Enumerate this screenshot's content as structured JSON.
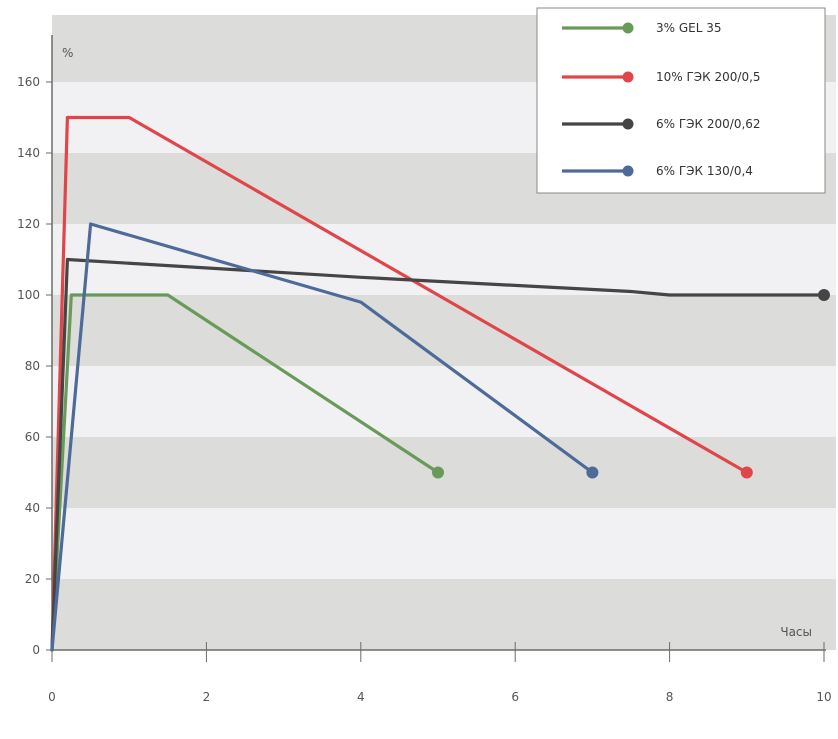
{
  "chart_data": {
    "type": "line",
    "ylabel": "%",
    "xlabel": "Часы",
    "xlim": [
      0,
      10
    ],
    "ylim": [
      0,
      160
    ],
    "x_ticks": [
      0,
      2,
      4,
      6,
      8,
      10
    ],
    "y_ticks": [
      0,
      20,
      40,
      60,
      80,
      100,
      120,
      140,
      160
    ],
    "grid": "alternating horizontal bands",
    "legend_position": "top-right",
    "series": [
      {
        "name": "3% GEL 35",
        "color": "#6a9a5a",
        "points": [
          [
            0,
            0
          ],
          [
            0.25,
            100
          ],
          [
            1.5,
            100
          ],
          [
            5,
            50
          ]
        ]
      },
      {
        "name": "10% ГЭК 200/0,5",
        "color": "#e0454a",
        "points": [
          [
            0,
            0
          ],
          [
            0.2,
            150
          ],
          [
            1,
            150
          ],
          [
            9,
            50
          ]
        ]
      },
      {
        "name": "6% ГЭК 200/0,62",
        "color": "#454545",
        "points": [
          [
            0,
            0
          ],
          [
            0.2,
            110
          ],
          [
            4,
            105
          ],
          [
            7.5,
            101
          ],
          [
            8,
            100
          ],
          [
            10,
            100
          ]
        ]
      },
      {
        "name": "6% ГЭК 130/0,4",
        "color": "#4e6a98",
        "points": [
          [
            0,
            0
          ],
          [
            0.5,
            120
          ],
          [
            4,
            98
          ],
          [
            7,
            50
          ]
        ]
      }
    ]
  }
}
